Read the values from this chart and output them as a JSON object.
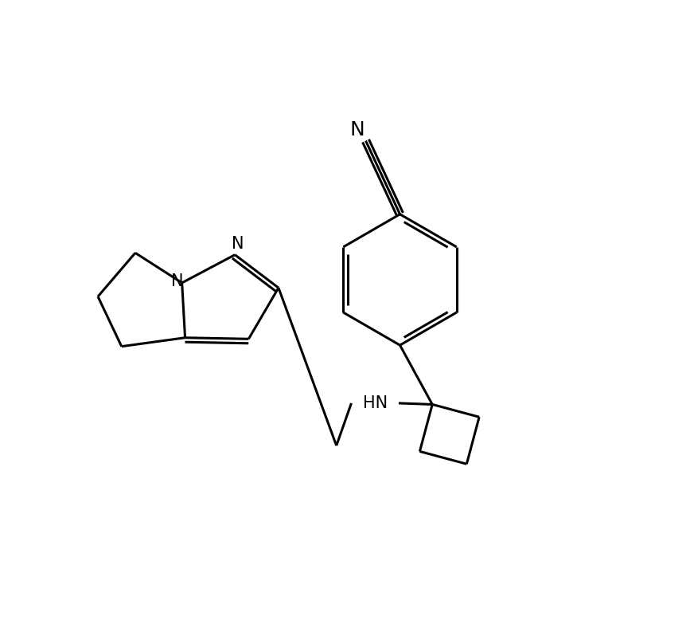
{
  "background_color": "#ffffff",
  "line_color": "#000000",
  "line_width": 2.2,
  "font_size": 15,
  "figsize": [
    8.72,
    7.88
  ],
  "dpi": 100,
  "label_N_nitrile": "N",
  "label_N_pyrazole": "N",
  "label_N_bridge": "N",
  "label_HN": "HN"
}
